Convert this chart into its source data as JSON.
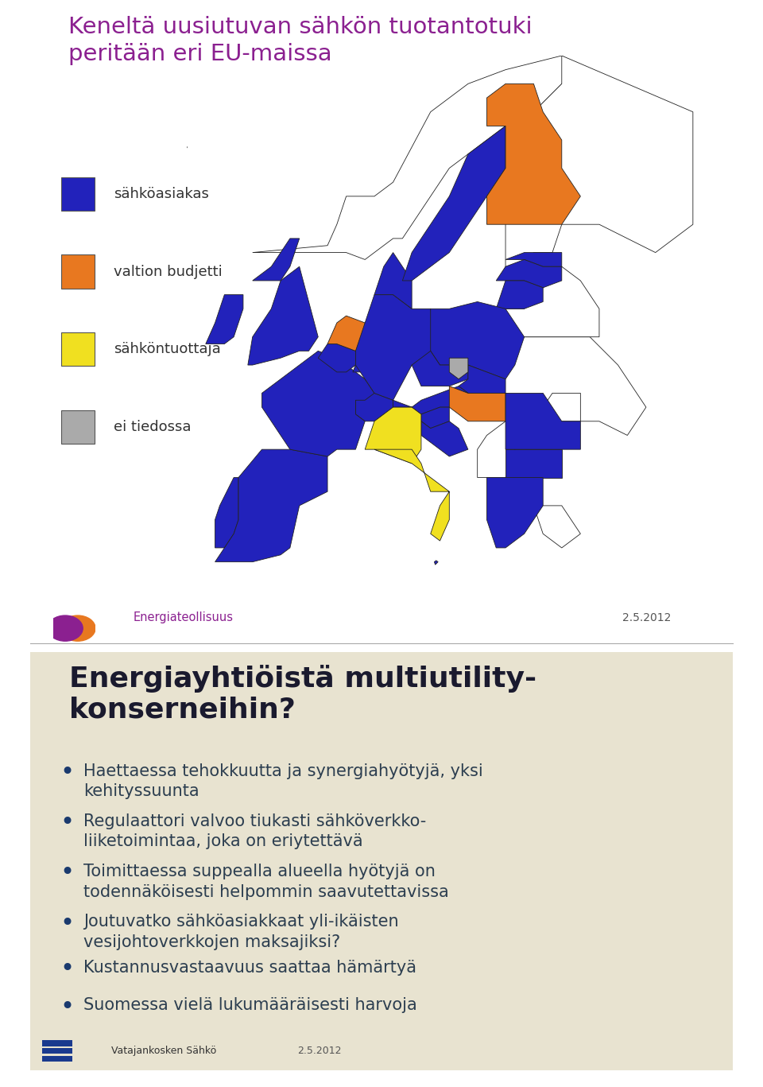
{
  "slide1_bg": "#ffffff",
  "slide2_bg": "#e8e3d0",
  "title1": "Keneltä uusiutuvan sähkön tuotantotuki\nperitään eri EU-maissa",
  "title1_color": "#8B2090",
  "title2": "Energiayhtiiöistä multiutility-\nkonserneihin?",
  "title2_color": "#1a1a2e",
  "legend_items": [
    {
      "label": "sähköasiakas",
      "color": "#2222bb"
    },
    {
      "label": "valtion budjetti",
      "color": "#e87820"
    },
    {
      "label": "sähköntuottaja",
      "color": "#f0e020"
    },
    {
      "label": "ei tiedossa",
      "color": "#aaaaaa"
    }
  ],
  "date_text": "2.5.2012",
  "separator_color": "#aaaaaa",
  "bullet_color": "#1a3a6e",
  "bullet_text_color": "#2c3e50",
  "bp_lines": [
    "Haettaessa tehokkuutta ja synergiahyötyjä, yksi\nkehityssuunta",
    "Regulaattori valvoo tiukasti sähköverkko-\nliiketoimintaa, joka on eriytettävä",
    "Toimittaessa suppealla alueella hyötyjä on\ntodennäköisesti helpommin saavutettavissa",
    "Joutuvatko sähköasiakkaat yli-ikäisten\nvesijohtoverkkojen maksajiksi?",
    "Kustannusvastaavuus saattaa hämärtyä",
    "Suomessa vielä lukumääräisesti harvoja"
  ]
}
